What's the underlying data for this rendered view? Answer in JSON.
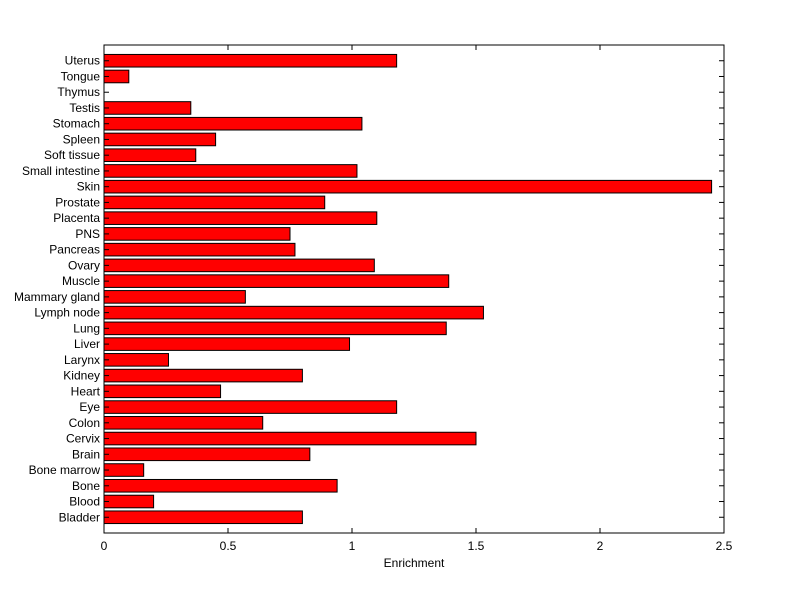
{
  "chart_data": {
    "type": "bar",
    "orientation": "horizontal",
    "title": "",
    "xlabel": "Enrichment",
    "ylabel": "",
    "xlim": [
      0,
      2.5
    ],
    "xticks": [
      "0",
      "0.5",
      "1",
      "1.5",
      "2",
      "2.5"
    ],
    "grid": false,
    "bar_color": "#ff0000",
    "bar_edge_color": "#000000",
    "categories": [
      "Bladder",
      "Blood",
      "Bone",
      "Bone marrow",
      "Brain",
      "Cervix",
      "Colon",
      "Eye",
      "Heart",
      "Kidney",
      "Larynx",
      "Liver",
      "Lung",
      "Lymph node",
      "Mammary gland",
      "Muscle",
      "Ovary",
      "Pancreas",
      "PNS",
      "Placenta",
      "Prostate",
      "Skin",
      "Small intestine",
      "Soft tissue",
      "Spleen",
      "Stomach",
      "Testis",
      "Thymus",
      "Tongue",
      "Uterus"
    ],
    "values": [
      0.8,
      0.2,
      0.94,
      0.16,
      0.83,
      1.5,
      0.64,
      1.18,
      0.47,
      0.8,
      0.26,
      0.99,
      1.38,
      1.53,
      0.57,
      1.39,
      1.09,
      0.77,
      0.75,
      1.1,
      0.89,
      2.45,
      1.02,
      0.37,
      0.45,
      1.04,
      0.35,
      0.0,
      0.1,
      1.18
    ]
  }
}
